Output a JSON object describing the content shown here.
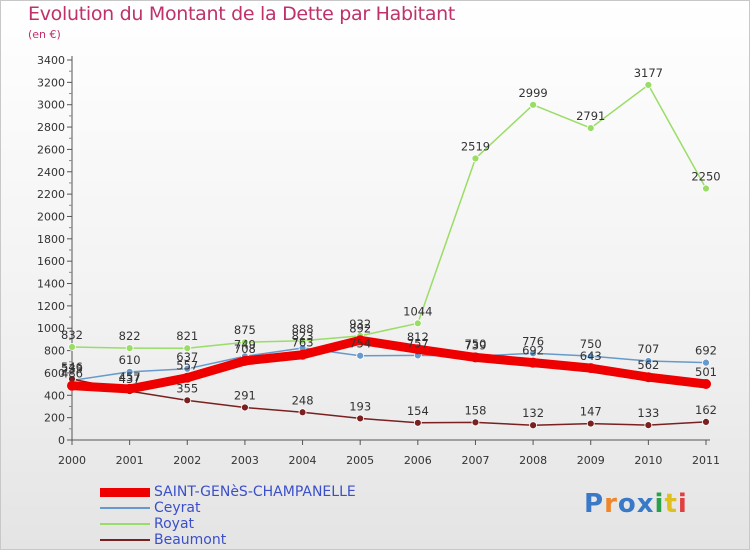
{
  "title": "Evolution du Montant de la Dette par Habitant",
  "subtitle": "(en €)",
  "logo": {
    "text": "Proxiti",
    "colors": [
      "#3a78c8",
      "#f0862a",
      "#3a78c8",
      "#3a78c8",
      "#2aa04a",
      "#e0c020",
      "#e04040"
    ]
  },
  "chart_data": {
    "type": "line",
    "categories": [
      "2000",
      "2001",
      "2002",
      "2003",
      "2004",
      "2005",
      "2006",
      "2007",
      "2008",
      "2009",
      "2010",
      "2011"
    ],
    "ylim": [
      0,
      3400
    ],
    "yticks": [
      0,
      200,
      400,
      600,
      800,
      1000,
      1200,
      1400,
      1600,
      1800,
      2000,
      2200,
      2400,
      2600,
      2800,
      3000,
      3200,
      3400
    ],
    "grid": false,
    "legend_position": "bottom-left",
    "series": [
      {
        "name": "SAINT-GENèS-CHAMPANELLE",
        "color": "#ee0000",
        "values": [
          486,
          457,
          557,
          708,
          763,
          892,
          812,
          739,
          692,
          643,
          562,
          501
        ]
      },
      {
        "name": "Ceyrat",
        "color": "#6699cc",
        "values": [
          533,
          610,
          637,
          749,
          823,
          754,
          757,
          750,
          776,
          750,
          707,
          692
        ]
      },
      {
        "name": "Royat",
        "color": "#99dd66",
        "values": [
          832,
          822,
          821,
          875,
          888,
          932,
          1044,
          2519,
          2999,
          2791,
          3177,
          2250
        ]
      },
      {
        "name": "Beaumont",
        "color": "#7a2020",
        "values": [
          546,
          437,
          355,
          291,
          248,
          193,
          154,
          158,
          132,
          147,
          133,
          162
        ]
      }
    ]
  }
}
